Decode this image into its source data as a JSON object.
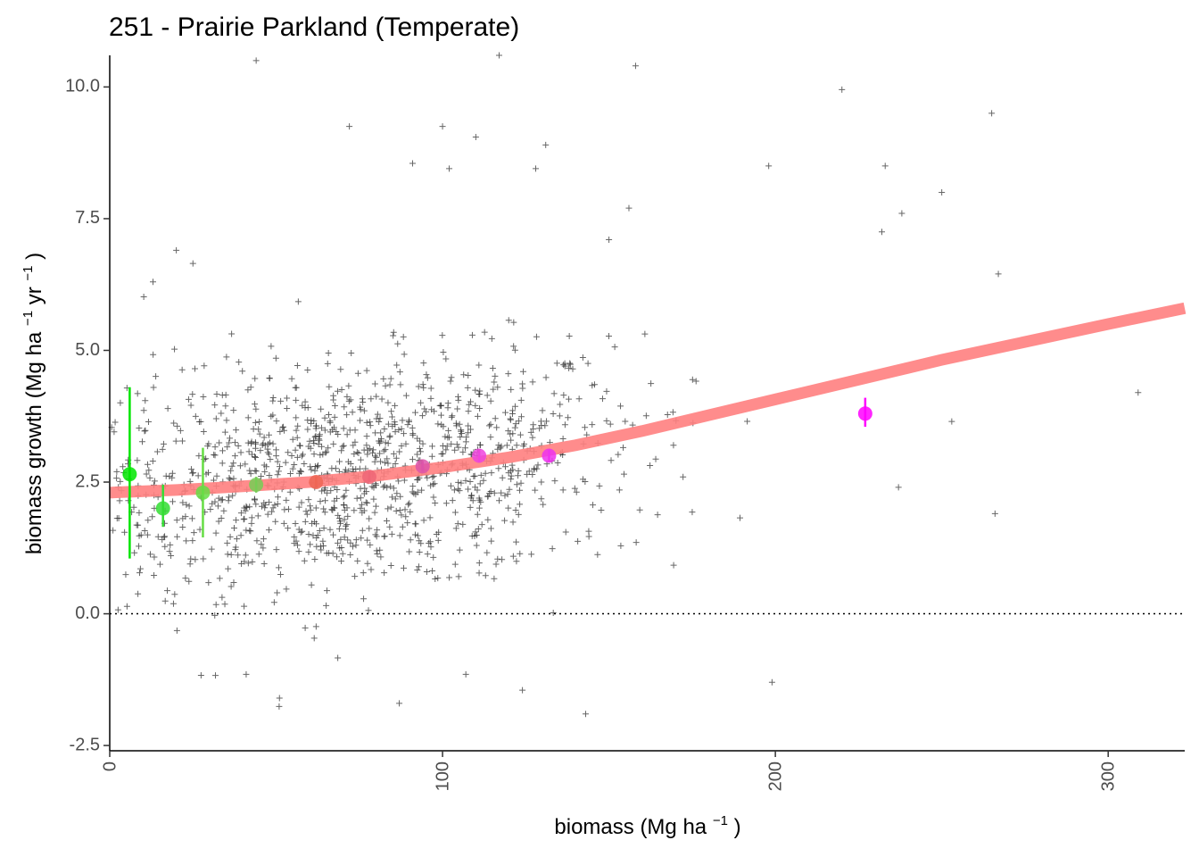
{
  "chart_data": {
    "type": "scatter",
    "title": "251 - Prairie Parkland (Temperate)",
    "xlabel": {
      "main": "biomass (Mg ha",
      "sup": "−1",
      "close": ")"
    },
    "ylabel": {
      "main": "biomass growth (Mg ha",
      "sup1": "−1",
      "mid": " yr",
      "sup2": "−1",
      "close": ")"
    },
    "xlim": [
      0,
      323
    ],
    "ylim": [
      -2.6,
      10.6
    ],
    "x_ticks": [
      0,
      100,
      200,
      300
    ],
    "y_ticks": [
      -2.5,
      0.0,
      2.5,
      5.0,
      7.5,
      10.0
    ],
    "x_tick_labels": [
      "0",
      "100",
      "200",
      "300"
    ],
    "y_tick_labels": [
      "-2.5",
      "0.0",
      "2.5",
      "5.0",
      "7.5",
      "10.0"
    ],
    "grid": false,
    "reference_line": {
      "y": 0,
      "style": "dotted",
      "color": "#000000"
    },
    "fit_curve": {
      "color": "#ff7f7f",
      "points": [
        [
          0,
          2.3
        ],
        [
          20,
          2.35
        ],
        [
          40,
          2.42
        ],
        [
          60,
          2.5
        ],
        [
          80,
          2.62
        ],
        [
          100,
          2.78
        ],
        [
          120,
          2.97
        ],
        [
          140,
          3.2
        ],
        [
          160,
          3.47
        ],
        [
          180,
          3.77
        ],
        [
          200,
          4.07
        ],
        [
          250,
          4.82
        ],
        [
          300,
          5.5
        ],
        [
          323,
          5.8
        ]
      ]
    },
    "binned_means": [
      {
        "x": 6,
        "y": 2.65,
        "lo": 1.05,
        "hi": 4.3,
        "color": "#00e600"
      },
      {
        "x": 16,
        "y": 2.0,
        "lo": 1.65,
        "hi": 2.45,
        "color": "#33dd33"
      },
      {
        "x": 28,
        "y": 2.3,
        "lo": 1.45,
        "hi": 3.15,
        "color": "#66dd44"
      },
      {
        "x": 44,
        "y": 2.45,
        "lo": 2.3,
        "hi": 2.6,
        "color": "#77cc55"
      },
      {
        "x": 62,
        "y": 2.5,
        "lo": 2.4,
        "hi": 2.6,
        "color": "#ee6655"
      },
      {
        "x": 78,
        "y": 2.6,
        "lo": 2.5,
        "hi": 2.7,
        "color": "#ee6677"
      },
      {
        "x": 94,
        "y": 2.8,
        "lo": 2.7,
        "hi": 2.9,
        "color": "#dd55aa"
      },
      {
        "x": 111,
        "y": 3.0,
        "lo": 2.88,
        "hi": 3.12,
        "color": "#ee44dd"
      },
      {
        "x": 132,
        "y": 3.0,
        "lo": 2.88,
        "hi": 3.12,
        "color": "#ee33ee"
      },
      {
        "x": 227,
        "y": 3.8,
        "lo": 3.55,
        "hi": 4.1,
        "color": "#ff00ff"
      }
    ],
    "scatter_outliers": [
      [
        44,
        10.5
      ],
      [
        117,
        10.6
      ],
      [
        158,
        10.4
      ],
      [
        220,
        9.95
      ],
      [
        265,
        9.5
      ],
      [
        72,
        9.25
      ],
      [
        100,
        9.25
      ],
      [
        110,
        9.05
      ],
      [
        131,
        8.9
      ],
      [
        91,
        8.55
      ],
      [
        102,
        8.45
      ],
      [
        128,
        8.45
      ],
      [
        198,
        8.5
      ],
      [
        233,
        8.5
      ],
      [
        250,
        8.0
      ],
      [
        238,
        7.6
      ],
      [
        232,
        7.25
      ],
      [
        267,
        6.45
      ],
      [
        309,
        4.2
      ],
      [
        253,
        3.65
      ],
      [
        237,
        2.4
      ],
      [
        266,
        1.9
      ],
      [
        199,
        -1.3
      ],
      [
        143,
        -1.9
      ],
      [
        87,
        -1.7
      ],
      [
        51,
        -1.6
      ],
      [
        124,
        -1.45
      ],
      [
        41,
        -1.15
      ],
      [
        107,
        -1.15
      ],
      [
        20,
        6.9
      ],
      [
        13,
        6.3
      ],
      [
        25,
        6.65
      ],
      [
        156,
        7.7
      ],
      [
        150,
        7.1
      ]
    ],
    "scatter_color": "#333333"
  }
}
